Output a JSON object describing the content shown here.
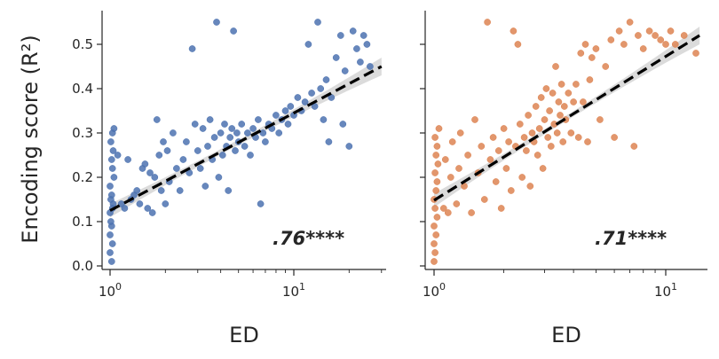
{
  "figure": {
    "shared_ylabel": "Encoding score (R²)",
    "xlabel": "ED",
    "x_scale": "log",
    "y_ticks": [
      0.0,
      0.1,
      0.2,
      0.3,
      0.4,
      0.5
    ],
    "y_tick_labels": [
      "0.0",
      "0.1",
      "0.2",
      "0.3",
      "0.4",
      "0.5"
    ]
  },
  "chart_data": [
    {
      "type": "scatter",
      "xlabel": "ED",
      "ylabel": "Encoding score (R²)",
      "x_scale": "log",
      "xlim": [
        0.9,
        30
      ],
      "ylim": [
        -0.01,
        0.575
      ],
      "x_tick_labels": [
        "10^0",
        "10^1"
      ],
      "x_ticks": [
        1,
        10
      ],
      "grid": false,
      "color": "#4c72b0",
      "annotation": ".76****",
      "fit_line": {
        "x_start": 1.0,
        "x_end": 30,
        "y_start": 0.125,
        "y_end": 0.45
      },
      "points": [
        [
          1.02,
          0.01
        ],
        [
          1.0,
          0.03
        ],
        [
          1.03,
          0.05
        ],
        [
          1.0,
          0.07
        ],
        [
          1.02,
          0.09
        ],
        [
          1.01,
          0.1
        ],
        [
          1.0,
          0.12
        ],
        [
          1.03,
          0.13
        ],
        [
          1.01,
          0.15
        ],
        [
          1.04,
          0.14
        ],
        [
          1.02,
          0.16
        ],
        [
          1.0,
          0.18
        ],
        [
          1.05,
          0.2
        ],
        [
          1.03,
          0.22
        ],
        [
          1.02,
          0.24
        ],
        [
          1.04,
          0.26
        ],
        [
          1.01,
          0.28
        ],
        [
          1.03,
          0.3
        ],
        [
          1.05,
          0.31
        ],
        [
          1.1,
          0.25
        ],
        [
          1.15,
          0.14
        ],
        [
          1.2,
          0.13
        ],
        [
          1.25,
          0.24
        ],
        [
          1.3,
          0.15
        ],
        [
          1.35,
          0.16
        ],
        [
          1.4,
          0.17
        ],
        [
          1.5,
          0.22
        ],
        [
          1.45,
          0.14
        ],
        [
          1.55,
          0.23
        ],
        [
          1.6,
          0.13
        ],
        [
          1.65,
          0.21
        ],
        [
          1.7,
          0.12
        ],
        [
          1.75,
          0.2
        ],
        [
          1.8,
          0.33
        ],
        [
          1.85,
          0.25
        ],
        [
          1.9,
          0.17
        ],
        [
          1.95,
          0.28
        ],
        [
          2.0,
          0.14
        ],
        [
          2.05,
          0.26
        ],
        [
          2.1,
          0.19
        ],
        [
          2.2,
          0.3
        ],
        [
          2.3,
          0.22
        ],
        [
          2.4,
          0.17
        ],
        [
          2.5,
          0.24
        ],
        [
          2.6,
          0.28
        ],
        [
          2.7,
          0.21
        ],
        [
          2.8,
          0.49
        ],
        [
          2.9,
          0.32
        ],
        [
          3.0,
          0.26
        ],
        [
          3.1,
          0.22
        ],
        [
          3.2,
          0.31
        ],
        [
          3.3,
          0.18
        ],
        [
          3.4,
          0.27
        ],
        [
          3.5,
          0.33
        ],
        [
          3.6,
          0.24
        ],
        [
          3.7,
          0.29
        ],
        [
          3.8,
          0.55
        ],
        [
          3.9,
          0.2
        ],
        [
          4.0,
          0.3
        ],
        [
          4.1,
          0.25
        ],
        [
          4.2,
          0.32
        ],
        [
          4.3,
          0.27
        ],
        [
          4.4,
          0.17
        ],
        [
          4.5,
          0.29
        ],
        [
          4.6,
          0.31
        ],
        [
          4.7,
          0.53
        ],
        [
          4.8,
          0.26
        ],
        [
          4.9,
          0.3
        ],
        [
          5.0,
          0.28
        ],
        [
          5.2,
          0.32
        ],
        [
          5.4,
          0.27
        ],
        [
          5.6,
          0.3
        ],
        [
          5.8,
          0.25
        ],
        [
          6.0,
          0.31
        ],
        [
          6.2,
          0.29
        ],
        [
          6.4,
          0.33
        ],
        [
          6.6,
          0.14
        ],
        [
          6.8,
          0.3
        ],
        [
          7.0,
          0.28
        ],
        [
          7.3,
          0.32
        ],
        [
          7.6,
          0.31
        ],
        [
          8.0,
          0.34
        ],
        [
          8.3,
          0.3
        ],
        [
          8.6,
          0.33
        ],
        [
          9.0,
          0.35
        ],
        [
          9.3,
          0.32
        ],
        [
          9.6,
          0.36
        ],
        [
          10.0,
          0.34
        ],
        [
          10.5,
          0.38
        ],
        [
          11.0,
          0.35
        ],
        [
          11.5,
          0.37
        ],
        [
          12.0,
          0.5
        ],
        [
          12.5,
          0.39
        ],
        [
          13.0,
          0.36
        ],
        [
          13.5,
          0.55
        ],
        [
          14.0,
          0.4
        ],
        [
          14.5,
          0.33
        ],
        [
          15.0,
          0.42
        ],
        [
          16.0,
          0.38
        ],
        [
          17.0,
          0.47
        ],
        [
          18.0,
          0.52
        ],
        [
          19.0,
          0.44
        ],
        [
          20.0,
          0.27
        ],
        [
          21.0,
          0.53
        ],
        [
          22.0,
          0.49
        ],
        [
          23.0,
          0.46
        ],
        [
          24.0,
          0.52
        ],
        [
          25.0,
          0.5
        ],
        [
          26.0,
          0.45
        ],
        [
          15.5,
          0.28
        ],
        [
          18.5,
          0.32
        ]
      ]
    },
    {
      "type": "scatter",
      "xlabel": "ED",
      "ylabel": "",
      "x_scale": "log",
      "xlim": [
        0.9,
        14
      ],
      "ylim": [
        -0.01,
        0.575
      ],
      "x_tick_labels": [
        "10^0",
        "10^1"
      ],
      "x_ticks": [
        1,
        10
      ],
      "grid": false,
      "color": "#dd8452",
      "annotation": ".71****",
      "fit_line": {
        "x_start": 1.0,
        "x_end": 14,
        "y_start": 0.148,
        "y_end": 0.52
      },
      "points": [
        [
          1.0,
          0.01
        ],
        [
          1.01,
          0.03
        ],
        [
          1.0,
          0.05
        ],
        [
          1.02,
          0.07
        ],
        [
          1.0,
          0.09
        ],
        [
          1.03,
          0.11
        ],
        [
          1.01,
          0.13
        ],
        [
          1.0,
          0.15
        ],
        [
          1.02,
          0.17
        ],
        [
          1.03,
          0.19
        ],
        [
          1.01,
          0.21
        ],
        [
          1.04,
          0.23
        ],
        [
          1.02,
          0.25
        ],
        [
          1.03,
          0.27
        ],
        [
          1.01,
          0.29
        ],
        [
          1.05,
          0.31
        ],
        [
          1.1,
          0.13
        ],
        [
          1.12,
          0.24
        ],
        [
          1.15,
          0.12
        ],
        [
          1.18,
          0.2
        ],
        [
          1.2,
          0.28
        ],
        [
          1.25,
          0.14
        ],
        [
          1.28,
          0.22
        ],
        [
          1.3,
          0.3
        ],
        [
          1.35,
          0.18
        ],
        [
          1.4,
          0.25
        ],
        [
          1.45,
          0.12
        ],
        [
          1.5,
          0.33
        ],
        [
          1.55,
          0.21
        ],
        [
          1.6,
          0.27
        ],
        [
          1.65,
          0.15
        ],
        [
          1.7,
          0.55
        ],
        [
          1.75,
          0.24
        ],
        [
          1.8,
          0.29
        ],
        [
          1.85,
          0.19
        ],
        [
          1.9,
          0.26
        ],
        [
          1.95,
          0.13
        ],
        [
          2.0,
          0.31
        ],
        [
          2.05,
          0.22
        ],
        [
          2.1,
          0.28
        ],
        [
          2.15,
          0.17
        ],
        [
          2.2,
          0.53
        ],
        [
          2.25,
          0.27
        ],
        [
          2.3,
          0.5
        ],
        [
          2.35,
          0.32
        ],
        [
          2.4,
          0.2
        ],
        [
          2.45,
          0.29
        ],
        [
          2.5,
          0.26
        ],
        [
          2.55,
          0.34
        ],
        [
          2.6,
          0.18
        ],
        [
          2.65,
          0.3
        ],
        [
          2.7,
          0.28
        ],
        [
          2.75,
          0.36
        ],
        [
          2.8,
          0.25
        ],
        [
          2.85,
          0.31
        ],
        [
          2.9,
          0.38
        ],
        [
          2.95,
          0.22
        ],
        [
          3.0,
          0.33
        ],
        [
          3.05,
          0.4
        ],
        [
          3.1,
          0.29
        ],
        [
          3.15,
          0.35
        ],
        [
          3.2,
          0.27
        ],
        [
          3.25,
          0.39
        ],
        [
          3.3,
          0.32
        ],
        [
          3.35,
          0.45
        ],
        [
          3.4,
          0.3
        ],
        [
          3.45,
          0.37
        ],
        [
          3.5,
          0.34
        ],
        [
          3.55,
          0.41
        ],
        [
          3.6,
          0.28
        ],
        [
          3.65,
          0.36
        ],
        [
          3.7,
          0.33
        ],
        [
          3.8,
          0.39
        ],
        [
          3.9,
          0.3
        ],
        [
          4.0,
          0.37
        ],
        [
          4.1,
          0.41
        ],
        [
          4.2,
          0.29
        ],
        [
          4.3,
          0.48
        ],
        [
          4.4,
          0.37
        ],
        [
          4.5,
          0.5
        ],
        [
          4.6,
          0.28
        ],
        [
          4.7,
          0.42
        ],
        [
          4.8,
          0.47
        ],
        [
          5.0,
          0.49
        ],
        [
          5.2,
          0.33
        ],
        [
          5.5,
          0.45
        ],
        [
          5.8,
          0.51
        ],
        [
          6.0,
          0.29
        ],
        [
          6.3,
          0.53
        ],
        [
          6.6,
          0.5
        ],
        [
          7.0,
          0.55
        ],
        [
          7.3,
          0.27
        ],
        [
          7.6,
          0.52
        ],
        [
          8.0,
          0.49
        ],
        [
          8.5,
          0.53
        ],
        [
          9.0,
          0.52
        ],
        [
          9.5,
          0.51
        ],
        [
          10.0,
          0.5
        ],
        [
          10.5,
          0.53
        ],
        [
          11.0,
          0.5
        ],
        [
          12.0,
          0.52
        ],
        [
          13.5,
          0.48
        ]
      ]
    }
  ]
}
